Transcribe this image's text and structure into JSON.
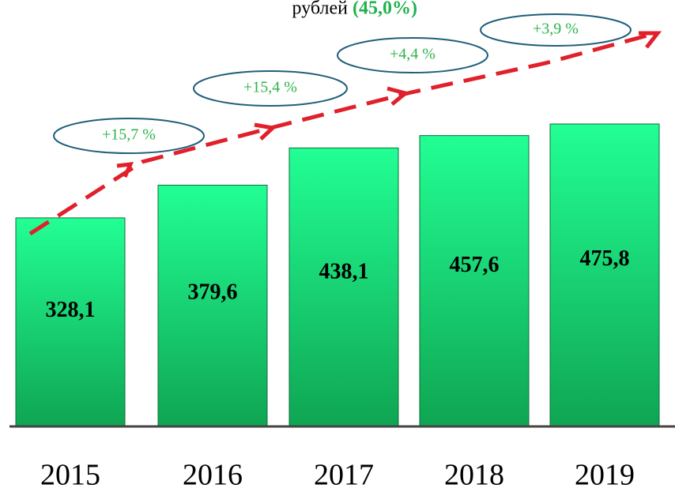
{
  "chart_data": {
    "type": "bar",
    "title": "рублей",
    "title_highlight": "(45,0%)",
    "categories": [
      "2015",
      "2016",
      "2017",
      "2018",
      "2019"
    ],
    "values": [
      328.1,
      379.6,
      438.1,
      457.6,
      475.8
    ],
    "value_labels": [
      "328,1",
      "379,6",
      "438,1",
      "457,6",
      "475,8"
    ],
    "annotations": [
      "+15,7 %",
      "+15,4 %",
      "+4,4 %",
      "+3,9 %"
    ],
    "color": "#1df58a"
  }
}
